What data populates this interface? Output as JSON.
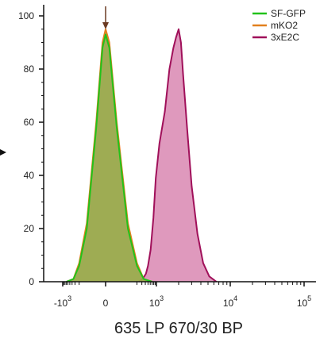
{
  "chart_data": {
    "type": "area",
    "title": "",
    "xlabel": "635 LP 670/30 BP",
    "ylabel": "",
    "x_scale": "biexponential",
    "ylim": [
      0,
      100
    ],
    "y_ticks": [
      0,
      20,
      40,
      60,
      80,
      100
    ],
    "x_ticks": [
      {
        "base": "-10",
        "exp": "3",
        "value": -1000
      },
      {
        "base": "0",
        "exp": "",
        "value": 0
      },
      {
        "base": "10",
        "exp": "3",
        "value": 1000
      },
      {
        "base": "10",
        "exp": "4",
        "value": 10000
      },
      {
        "base": "10",
        "exp": "5",
        "value": 100000
      }
    ],
    "legend_position": "top-right",
    "series": [
      {
        "name": "SF-GFP",
        "color": "#22c21a",
        "fill": "#8fa84a",
        "points": [
          [
            -700,
            0
          ],
          [
            -350,
            1
          ],
          [
            -200,
            6
          ],
          [
            -120,
            20
          ],
          [
            -60,
            58
          ],
          [
            -20,
            88
          ],
          [
            0,
            93
          ],
          [
            20,
            88
          ],
          [
            60,
            58
          ],
          [
            120,
            20
          ],
          [
            200,
            6
          ],
          [
            350,
            1
          ],
          [
            700,
            0
          ]
        ]
      },
      {
        "name": "mKO2",
        "color": "#e2801e",
        "fill": "#b7a040",
        "points": [
          [
            -700,
            0
          ],
          [
            -350,
            1
          ],
          [
            -200,
            7
          ],
          [
            -120,
            22
          ],
          [
            -60,
            60
          ],
          [
            -20,
            90
          ],
          [
            0,
            95
          ],
          [
            20,
            90
          ],
          [
            60,
            60
          ],
          [
            120,
            22
          ],
          [
            200,
            7
          ],
          [
            350,
            1
          ],
          [
            700,
            0
          ]
        ]
      },
      {
        "name": "3xE2C",
        "color": "#a0105a",
        "fill": "#d987b2",
        "points": [
          [
            230,
            0
          ],
          [
            320,
            1
          ],
          [
            420,
            3
          ],
          [
            500,
            6
          ],
          [
            620,
            12
          ],
          [
            780,
            24
          ],
          [
            950,
            39
          ],
          [
            1100,
            52
          ],
          [
            1300,
            64
          ],
          [
            1500,
            80
          ],
          [
            1700,
            88
          ],
          [
            1850,
            92
          ],
          [
            2000,
            95
          ],
          [
            2150,
            90
          ],
          [
            2300,
            78
          ],
          [
            2600,
            58
          ],
          [
            3000,
            36
          ],
          [
            3600,
            18
          ],
          [
            4300,
            7
          ],
          [
            5200,
            2
          ],
          [
            6500,
            0
          ]
        ]
      }
    ],
    "annotation": "arrow at 0 pointing down"
  }
}
